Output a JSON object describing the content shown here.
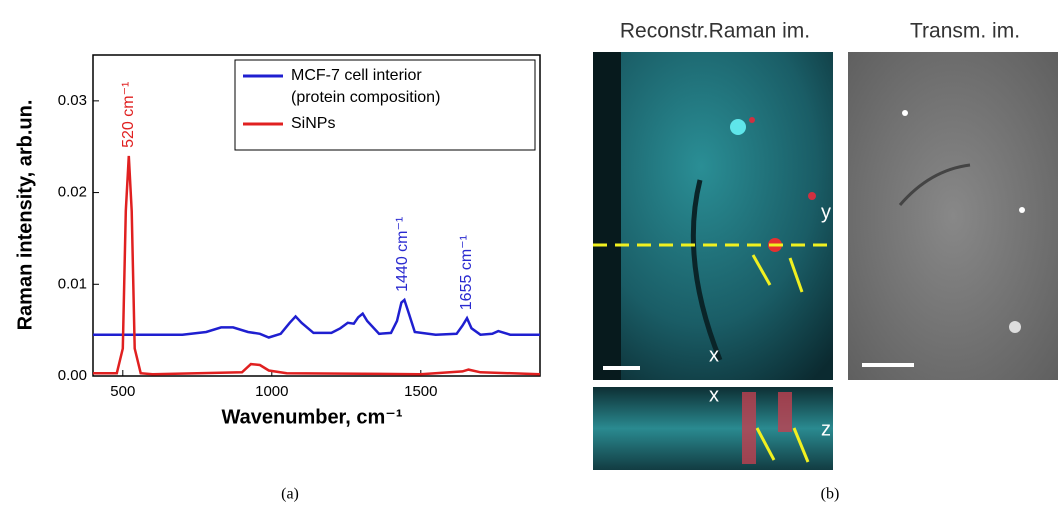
{
  "chart_data": {
    "type": "line",
    "ylabel": "Raman intensity, arb.un.",
    "xlabel": "Wavenumber, cm⁻¹",
    "xlim": [
      400,
      1900
    ],
    "xticks": [
      500,
      1000,
      1500
    ],
    "ylim": [
      0,
      0.035
    ],
    "yticks": [
      {
        "value": 0,
        "label": "0.00"
      },
      0.01,
      0.02,
      0.03
    ],
    "legend": "upper right",
    "series": [
      {
        "name": "MCF-7 cell interior\n(protein composition)",
        "color": "#1f1fd0",
        "x": [
          400,
          700,
          780,
          830,
          870,
          920,
          960,
          990,
          1030,
          1060,
          1080,
          1100,
          1140,
          1200,
          1230,
          1255,
          1275,
          1290,
          1305,
          1320,
          1360,
          1400,
          1420,
          1435,
          1445,
          1460,
          1480,
          1550,
          1620,
          1640,
          1655,
          1670,
          1700,
          1740,
          1760,
          1800,
          1900
        ],
        "values": [
          0.0045,
          0.0045,
          0.0048,
          0.0053,
          0.0053,
          0.0048,
          0.0046,
          0.0042,
          0.0046,
          0.0058,
          0.0065,
          0.0058,
          0.0047,
          0.0047,
          0.0052,
          0.0058,
          0.0057,
          0.0064,
          0.0068,
          0.006,
          0.0046,
          0.0047,
          0.006,
          0.008,
          0.0083,
          0.0068,
          0.0048,
          0.0045,
          0.0046,
          0.0055,
          0.0063,
          0.0052,
          0.0045,
          0.0046,
          0.0049,
          0.0045,
          0.0045
        ]
      },
      {
        "name": "SiNPs",
        "color": "#e02020",
        "x": [
          400,
          480,
          500,
          510,
          520,
          530,
          540,
          560,
          600,
          900,
          930,
          960,
          990,
          1050,
          1500,
          1640,
          1660,
          1700,
          1900
        ],
        "values": [
          0.0003,
          0.0003,
          0.003,
          0.018,
          0.024,
          0.018,
          0.003,
          0.0003,
          0.0002,
          0.0004,
          0.0013,
          0.0012,
          0.0006,
          0.0003,
          0.0002,
          0.0005,
          0.0007,
          0.0004,
          0.0002
        ]
      }
    ],
    "annotations": [
      {
        "text": "520 cm⁻¹",
        "x": 520,
        "y": 0.024,
        "color": "#e02020"
      },
      {
        "text": "1440 cm⁻¹",
        "x": 1440,
        "y": 0.0083,
        "color": "#2a2ad0"
      },
      {
        "text": "1655 cm⁻¹",
        "x": 1655,
        "y": 0.0063,
        "color": "#2a2ad0"
      }
    ],
    "panel_label": "(a)"
  },
  "panel_b": {
    "titles": [
      "Reconstr.Raman im.",
      "Transm. im."
    ],
    "axis_marks": [
      "y",
      "x",
      "x",
      "z"
    ],
    "panel_label": "(b)"
  }
}
